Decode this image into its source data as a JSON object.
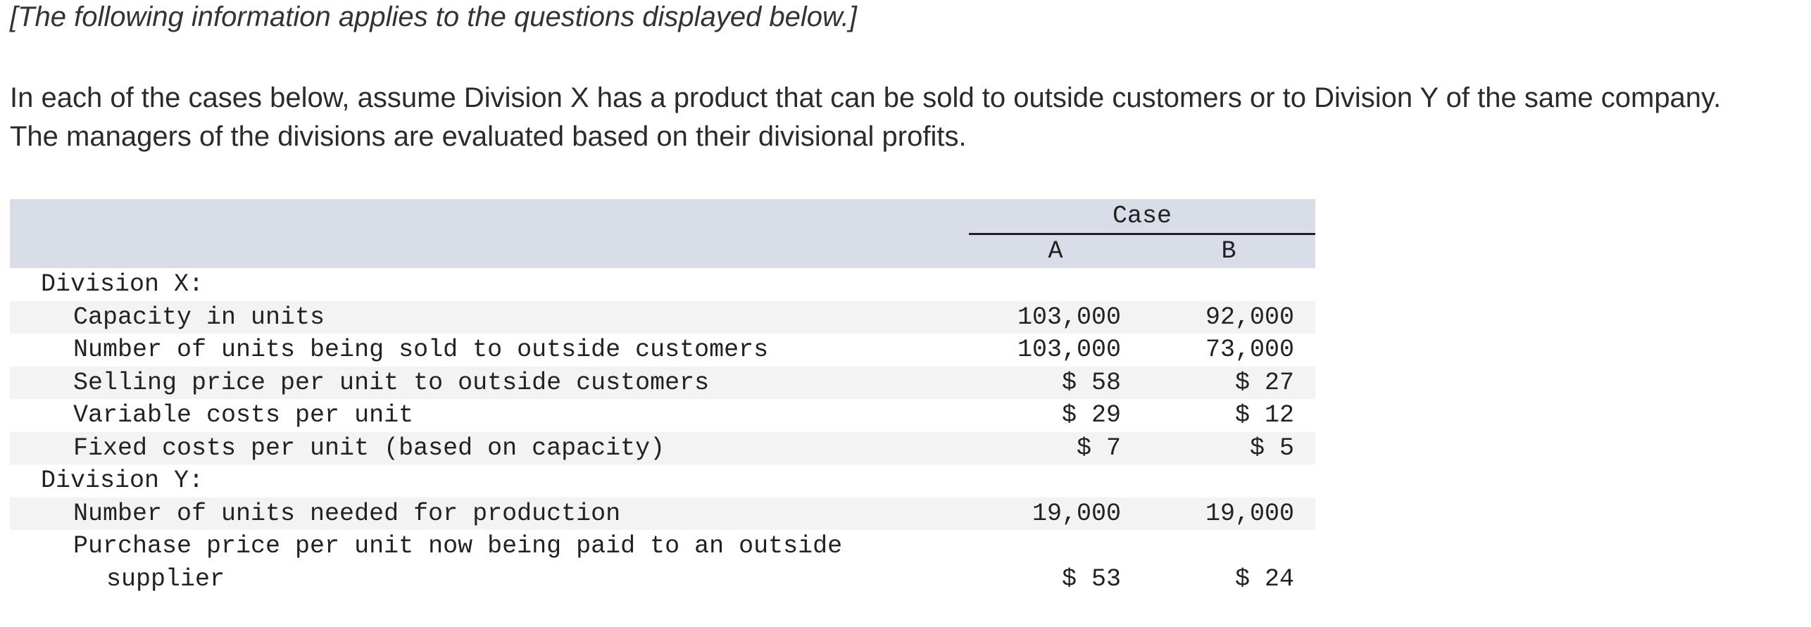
{
  "intro": {
    "note": "[The following information applies to the questions displayed below.]",
    "paragraph": "In each of the cases below, assume Division X has a product that can be sold to outside customers or to Division Y of the same company. The managers of the divisions are evaluated based on their divisional profits."
  },
  "table": {
    "group_header": "Case",
    "col_a": "A",
    "col_b": "B",
    "division_x": {
      "label": "Division X:",
      "rows": [
        {
          "label": "Capacity in units",
          "a": "103,000",
          "b": "92,000"
        },
        {
          "label": "Number of units being sold to outside customers",
          "a": "103,000",
          "b": "73,000"
        },
        {
          "label": "Selling price per unit to outside customers",
          "a": "$ 58",
          "b": "$ 27"
        },
        {
          "label": "Variable costs per unit",
          "a": "$ 29",
          "b": "$ 12"
        },
        {
          "label": "Fixed costs per unit (based on capacity)",
          "a": "$ 7",
          "b": "$ 5"
        }
      ]
    },
    "division_y": {
      "label": "Division Y:",
      "rows": [
        {
          "label": "Number of units needed for production",
          "a": "19,000",
          "b": "19,000"
        }
      ],
      "purchase_row": {
        "label_line1": "Purchase price per unit now being paid to an outside",
        "label_line2": "supplier",
        "a": "$ 53",
        "b": "$ 24"
      }
    }
  }
}
